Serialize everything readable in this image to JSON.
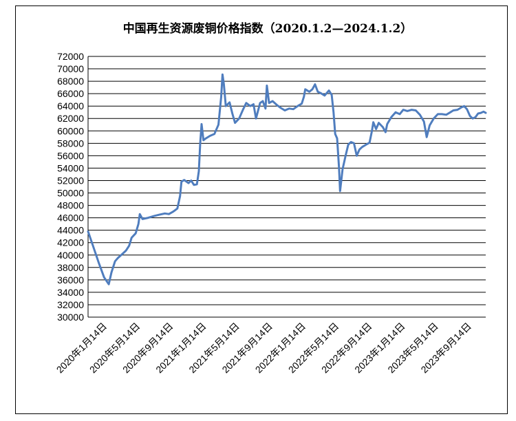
{
  "chart_data": {
    "type": "line",
    "title": "中国再生资源废铜价格指数（2020.1.2—2024.1.2）",
    "xlabel": "",
    "ylabel": "",
    "ylim": [
      30000,
      72000
    ],
    "ytick_step": 2000,
    "grid": "horizontal",
    "legend": "none",
    "line_color": "#4F7DBE",
    "x_ticks": [
      "2020年1月14日",
      "2020年5月14日",
      "2020年9月14日",
      "2021年1月14日",
      "2021年5月14日",
      "2021年9月14日",
      "2022年1月14日",
      "2022年5月14日",
      "2022年9月14日",
      "2023年1月14日",
      "2023年5月14日",
      "2023年9月14日"
    ],
    "x_range": [
      "2020-01-02",
      "2024-01-02"
    ],
    "series": [
      {
        "points": [
          [
            "2020-01-02",
            43800
          ],
          [
            "2020-01-20",
            41500
          ],
          [
            "2020-02-10",
            38800
          ],
          [
            "2020-03-01",
            36400
          ],
          [
            "2020-03-18",
            35300
          ],
          [
            "2020-03-28",
            37200
          ],
          [
            "2020-04-10",
            39000
          ],
          [
            "2020-04-20",
            39500
          ],
          [
            "2020-05-05",
            40100
          ],
          [
            "2020-05-20",
            40700
          ],
          [
            "2020-06-01",
            41500
          ],
          [
            "2020-06-10",
            42800
          ],
          [
            "2020-06-25",
            43500
          ],
          [
            "2020-07-05",
            45000
          ],
          [
            "2020-07-10",
            46600
          ],
          [
            "2020-07-20",
            45800
          ],
          [
            "2020-08-10",
            46000
          ],
          [
            "2020-09-01",
            46300
          ],
          [
            "2020-09-20",
            46500
          ],
          [
            "2020-10-10",
            46700
          ],
          [
            "2020-10-25",
            46600
          ],
          [
            "2020-11-10",
            47000
          ],
          [
            "2020-11-25",
            47500
          ],
          [
            "2020-12-05",
            49500
          ],
          [
            "2020-12-10",
            51800
          ],
          [
            "2020-12-20",
            52100
          ],
          [
            "2021-01-05",
            51600
          ],
          [
            "2021-01-15",
            52000
          ],
          [
            "2021-01-25",
            51300
          ],
          [
            "2021-02-05",
            51400
          ],
          [
            "2021-02-12",
            53500
          ],
          [
            "2021-02-17",
            58000
          ],
          [
            "2021-02-22",
            61100
          ],
          [
            "2021-03-01",
            58500
          ],
          [
            "2021-03-10",
            58800
          ],
          [
            "2021-03-25",
            59200
          ],
          [
            "2021-04-10",
            59500
          ],
          [
            "2021-04-25",
            61000
          ],
          [
            "2021-05-05",
            65500
          ],
          [
            "2021-05-10",
            69100
          ],
          [
            "2021-05-15",
            67500
          ],
          [
            "2021-05-22",
            64000
          ],
          [
            "2021-06-05",
            64600
          ],
          [
            "2021-06-15",
            62800
          ],
          [
            "2021-06-25",
            61300
          ],
          [
            "2021-07-10",
            62000
          ],
          [
            "2021-07-25",
            63500
          ],
          [
            "2021-08-05",
            64500
          ],
          [
            "2021-08-20",
            64000
          ],
          [
            "2021-09-01",
            64300
          ],
          [
            "2021-09-10",
            62000
          ],
          [
            "2021-09-25",
            64500
          ],
          [
            "2021-10-05",
            64800
          ],
          [
            "2021-10-15",
            63600
          ],
          [
            "2021-10-20",
            67300
          ],
          [
            "2021-10-28",
            64500
          ],
          [
            "2021-11-10",
            64800
          ],
          [
            "2021-11-25",
            64200
          ],
          [
            "2021-12-10",
            63700
          ],
          [
            "2021-12-25",
            63300
          ],
          [
            "2022-01-10",
            63600
          ],
          [
            "2022-01-25",
            63500
          ],
          [
            "2022-02-10",
            64000
          ],
          [
            "2022-02-25",
            64400
          ],
          [
            "2022-03-05",
            65500
          ],
          [
            "2022-03-10",
            66700
          ],
          [
            "2022-03-25",
            66300
          ],
          [
            "2022-04-05",
            66700
          ],
          [
            "2022-04-15",
            67500
          ],
          [
            "2022-04-25",
            66300
          ],
          [
            "2022-05-05",
            66100
          ],
          [
            "2022-05-20",
            65700
          ],
          [
            "2022-06-05",
            66500
          ],
          [
            "2022-06-15",
            65800
          ],
          [
            "2022-06-22",
            63000
          ],
          [
            "2022-06-28",
            59500
          ],
          [
            "2022-07-05",
            58800
          ],
          [
            "2022-07-12",
            54000
          ],
          [
            "2022-07-16",
            50300
          ],
          [
            "2022-07-25",
            53800
          ],
          [
            "2022-08-05",
            56000
          ],
          [
            "2022-08-15",
            57800
          ],
          [
            "2022-08-25",
            58200
          ],
          [
            "2022-09-05",
            58000
          ],
          [
            "2022-09-15",
            56000
          ],
          [
            "2022-09-25",
            57000
          ],
          [
            "2022-10-05",
            57400
          ],
          [
            "2022-10-20",
            57800
          ],
          [
            "2022-11-01",
            58100
          ],
          [
            "2022-11-10",
            60000
          ],
          [
            "2022-11-15",
            61400
          ],
          [
            "2022-11-25",
            60300
          ],
          [
            "2022-12-05",
            61300
          ],
          [
            "2022-12-20",
            60600
          ],
          [
            "2022-12-30",
            59800
          ],
          [
            "2023-01-05",
            61100
          ],
          [
            "2023-01-20",
            62200
          ],
          [
            "2023-02-05",
            63000
          ],
          [
            "2023-02-20",
            62700
          ],
          [
            "2023-03-05",
            63400
          ],
          [
            "2023-03-20",
            63200
          ],
          [
            "2023-04-05",
            63400
          ],
          [
            "2023-04-20",
            63300
          ],
          [
            "2023-05-05",
            62600
          ],
          [
            "2023-05-20",
            61500
          ],
          [
            "2023-05-30",
            59000
          ],
          [
            "2023-06-10",
            60900
          ],
          [
            "2023-06-25",
            62000
          ],
          [
            "2023-07-10",
            62700
          ],
          [
            "2023-07-25",
            62700
          ],
          [
            "2023-08-10",
            62600
          ],
          [
            "2023-08-25",
            63000
          ],
          [
            "2023-09-05",
            63300
          ],
          [
            "2023-09-20",
            63400
          ],
          [
            "2023-10-05",
            63800
          ],
          [
            "2023-10-15",
            64000
          ],
          [
            "2023-10-25",
            63500
          ],
          [
            "2023-11-05",
            62400
          ],
          [
            "2023-11-15",
            62000
          ],
          [
            "2023-11-25",
            62200
          ],
          [
            "2023-12-05",
            62800
          ],
          [
            "2023-12-15",
            62900
          ],
          [
            "2023-12-25",
            63100
          ],
          [
            "2024-01-02",
            62900
          ]
        ]
      }
    ]
  }
}
